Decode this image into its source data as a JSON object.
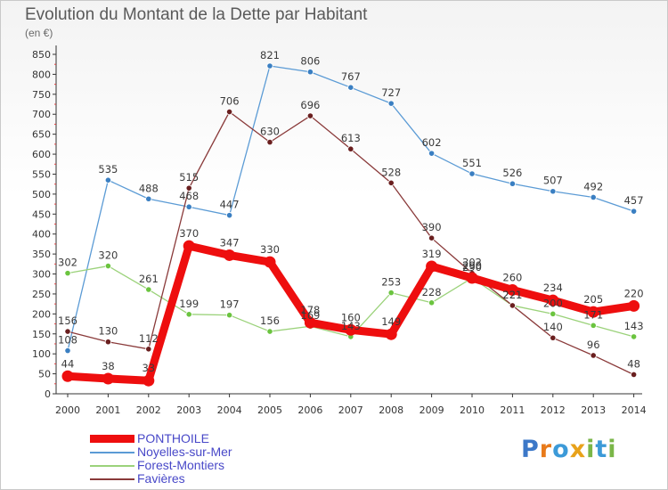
{
  "title": "Evolution du Montant de la Dette par Habitant",
  "subtitle": "(en €)",
  "brand": {
    "letters": [
      {
        "ch": "P",
        "color": "#3c78c8"
      },
      {
        "ch": "r",
        "color": "#e87a1a"
      },
      {
        "ch": "o",
        "color": "#3c9ad8"
      },
      {
        "ch": "x",
        "color": "#e8a21a"
      },
      {
        "ch": "i",
        "color": "#7ab648"
      },
      {
        "ch": "t",
        "color": "#3c9ad8"
      },
      {
        "ch": "i",
        "color": "#7ab648"
      }
    ]
  },
  "chart_data": {
    "type": "line",
    "x": [
      2000,
      2001,
      2002,
      2003,
      2004,
      2005,
      2006,
      2007,
      2008,
      2009,
      2010,
      2011,
      2012,
      2013,
      2014
    ],
    "ylim": [
      0,
      850
    ],
    "yticks": [
      0,
      50,
      100,
      150,
      200,
      250,
      300,
      350,
      400,
      450,
      500,
      550,
      600,
      650,
      700,
      750,
      800,
      850
    ],
    "grid": false,
    "legend_position": "bottom-left",
    "series": [
      {
        "name": "Noyelles-sur-Mer",
        "color": "#5b9bd5",
        "dot": "#3a7fc2",
        "emphasis": false,
        "values": [
          108,
          535,
          488,
          468,
          447,
          821,
          806,
          767,
          727,
          602,
          551,
          526,
          507,
          492,
          457
        ]
      },
      {
        "name": "Forest-Montiers",
        "color": "#9bd27a",
        "dot": "#6bc43f",
        "emphasis": false,
        "values": [
          302,
          320,
          261,
          199,
          197,
          156,
          169,
          143,
          253,
          228,
          290,
          221,
          200,
          171,
          143
        ]
      },
      {
        "name": "Favières",
        "color": "#8a3a3a",
        "dot": "#6a1f1f",
        "emphasis": false,
        "values": [
          156,
          130,
          112,
          515,
          706,
          630,
          696,
          613,
          528,
          390,
          302,
          221,
          140,
          96,
          48
        ]
      },
      {
        "name": "PONTHOILE",
        "color": "#ee0e0e",
        "dot": "#ee0e0e",
        "emphasis": true,
        "values": [
          44,
          38,
          33,
          370,
          347,
          330,
          178,
          160,
          149,
          319,
          290,
          260,
          234,
          205,
          220
        ]
      }
    ],
    "legend_order": [
      "PONTHOILE",
      "Noyelles-sur-Mer",
      "Forest-Montiers",
      "Favières"
    ]
  }
}
